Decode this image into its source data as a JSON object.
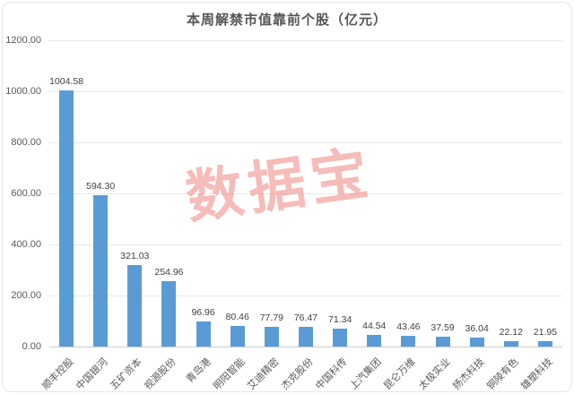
{
  "chart_data": {
    "type": "bar",
    "title": "本周解禁市值靠前个股（亿元）",
    "xlabel": "",
    "ylabel": "",
    "categories": [
      "顺丰控股",
      "中国银河",
      "五矿资本",
      "视源股份",
      "青岛港",
      "明阳智能",
      "艾迪精密",
      "杰克股份",
      "中国科传",
      "上汽集团",
      "昆仑万维",
      "太极实业",
      "扬杰科技",
      "铜陵有色",
      "雄塑科技"
    ],
    "values": [
      1004.58,
      594.3,
      321.03,
      254.96,
      96.96,
      80.46,
      77.79,
      76.47,
      71.34,
      44.54,
      43.46,
      37.59,
      36.04,
      22.12,
      21.95
    ],
    "value_labels": [
      "1004.58",
      "594.30",
      "321.03",
      "254.96",
      "96.96",
      "80.46",
      "77.79",
      "76.47",
      "71.34",
      "44.54",
      "43.46",
      "37.59",
      "36.04",
      "22.12",
      "21.95"
    ],
    "ylim": [
      0,
      1200
    ],
    "y_ticks": [
      "1200.00",
      "1000.00",
      "800.00",
      "600.00",
      "400.00",
      "200.00",
      "0.00"
    ],
    "grid": true,
    "legend": "none",
    "bar_color": "#5b9bd5",
    "watermark": "数据宝",
    "watermark_color": "#ec7a74"
  }
}
